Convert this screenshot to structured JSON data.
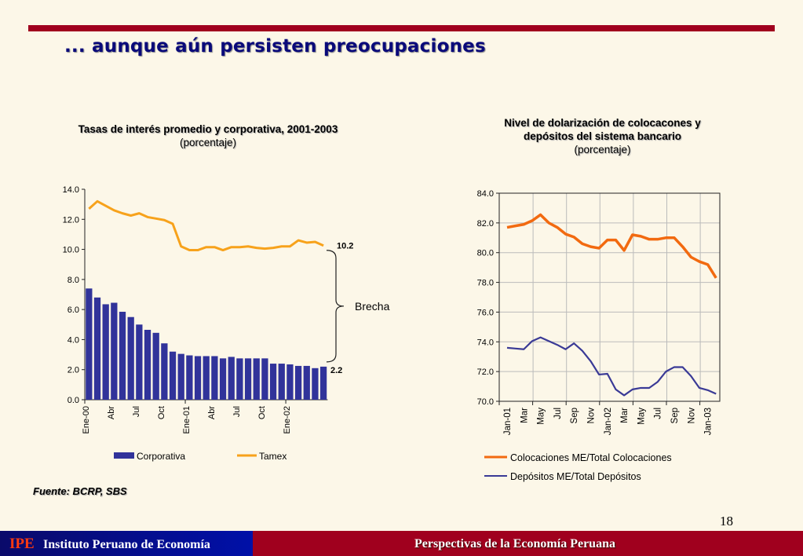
{
  "slide": {
    "title": "... aunque aún persisten preocupaciones",
    "source": "Fuente: BCRP, SBS",
    "page_number": "18",
    "footer_logo": "IPE",
    "footer_org": "Instituto Peruano de Economía",
    "footer_title": "Perspectivas de la Economía Peruana",
    "colors": {
      "accent_red": "#a0001e",
      "title_blue": "#0a0a7a",
      "bar_blue": "#31339a",
      "tamex_orange": "#f7a21b",
      "coloc_orange": "#f26a10",
      "depo_blue": "#3a3a96"
    }
  },
  "chart_data": [
    {
      "type": "bar",
      "title": "Tasas de interés promedio y corporativa, 2001-2003",
      "subtitle": "(porcentaje)",
      "xlabel": "",
      "ylabel": "",
      "ylim": [
        0,
        14
      ],
      "yticks": [
        "0.0",
        "2.0",
        "4.0",
        "6.0",
        "8.0",
        "10.0",
        "12.0",
        "14.0"
      ],
      "ytick_values": [
        0,
        2,
        4,
        6,
        8,
        10,
        12,
        14
      ],
      "xtick_labels": [
        {
          "label": "Ene-00",
          "index": 0
        },
        {
          "label": "Abr",
          "index": 3
        },
        {
          "label": "Jul",
          "index": 6
        },
        {
          "label": "Oct",
          "index": 9
        },
        {
          "label": "Ene-01",
          "index": 12
        },
        {
          "label": "Abr",
          "index": 15
        },
        {
          "label": "Jul",
          "index": 18
        },
        {
          "label": "Oct",
          "index": 21
        },
        {
          "label": "Ene-02",
          "index": 24
        }
      ],
      "major_tick_indices": [
        0,
        12,
        24
      ],
      "series": [
        {
          "name": "Corporativa",
          "kind": "bar",
          "values": [
            7.4,
            6.8,
            6.35,
            6.45,
            5.85,
            5.5,
            5.0,
            4.65,
            4.45,
            3.75,
            3.2,
            3.05,
            2.95,
            2.9,
            2.9,
            2.9,
            2.75,
            2.85,
            2.75,
            2.75,
            2.75,
            2.75,
            2.4,
            2.4,
            2.35,
            2.25,
            2.25,
            2.1,
            2.2
          ]
        },
        {
          "name": "Tamex",
          "kind": "line",
          "values": [
            12.7,
            13.2,
            12.9,
            12.6,
            12.4,
            12.25,
            12.4,
            12.15,
            12.05,
            11.95,
            11.7,
            10.2,
            9.95,
            9.95,
            10.15,
            10.15,
            9.95,
            10.15,
            10.15,
            10.2,
            10.1,
            10.05,
            10.1,
            10.2,
            10.2,
            10.6,
            10.45,
            10.5,
            10.25
          ]
        }
      ],
      "annotations": [
        {
          "text": "10.2",
          "value": 10.2
        },
        {
          "text": "2.2",
          "value": 2.2
        },
        {
          "text": "Brecha"
        }
      ],
      "legend": {
        "placement": "bottom",
        "entries": [
          "Corporativa",
          "Tamex"
        ]
      },
      "grid": false
    },
    {
      "type": "line",
      "title": "Nivel de dolarización de colocacones y depósitos del sistema bancario",
      "title_line1": "Nivel de dolarización de colocacones y",
      "title_line2": "depósitos del sistema bancario",
      "subtitle": "(porcentaje)",
      "xlabel": "",
      "ylabel": "",
      "ylim": [
        70,
        84
      ],
      "yticks": [
        "70.0",
        "72.0",
        "74.0",
        "76.0",
        "78.0",
        "80.0",
        "82.0",
        "84.0"
      ],
      "ytick_values": [
        70,
        72,
        74,
        76,
        78,
        80,
        82,
        84
      ],
      "xtick_labels": [
        {
          "label": "Jan-01",
          "index": 0
        },
        {
          "label": "Mar",
          "index": 2
        },
        {
          "label": "May",
          "index": 4
        },
        {
          "label": "Jul",
          "index": 6
        },
        {
          "label": "Sep",
          "index": 8
        },
        {
          "label": "Nov",
          "index": 10
        },
        {
          "label": "Jan-02",
          "index": 12
        },
        {
          "label": "Mar",
          "index": 14
        },
        {
          "label": "May",
          "index": 16
        },
        {
          "label": "Jul",
          "index": 18
        },
        {
          "label": "Sep",
          "index": 20
        },
        {
          "label": "Nov",
          "index": 22
        },
        {
          "label": "Jan-03",
          "index": 24
        }
      ],
      "series": [
        {
          "name": "Colocaciones ME/Total Colocaciones",
          "values": [
            81.7,
            81.8,
            81.9,
            82.15,
            82.55,
            82.0,
            81.7,
            81.25,
            81.05,
            80.6,
            80.4,
            80.3,
            80.85,
            80.85,
            80.15,
            81.2,
            81.1,
            80.9,
            80.9,
            81.0,
            81.0,
            80.4,
            79.7,
            79.4,
            79.2,
            78.3
          ]
        },
        {
          "name": "Depósitos ME/Total Depósitos",
          "values": [
            73.6,
            73.55,
            73.5,
            74.05,
            74.3,
            74.05,
            73.8,
            73.5,
            73.9,
            73.4,
            72.7,
            71.8,
            71.85,
            70.8,
            70.4,
            70.8,
            70.9,
            70.9,
            71.3,
            72.0,
            72.3,
            72.3,
            71.7,
            70.9,
            70.75,
            70.5
          ]
        }
      ],
      "legend": {
        "placement": "bottom",
        "entries": [
          "Colocaciones ME/Total Colocaciones",
          "Depósitos ME/Total Depósitos"
        ]
      },
      "grid": true
    }
  ]
}
